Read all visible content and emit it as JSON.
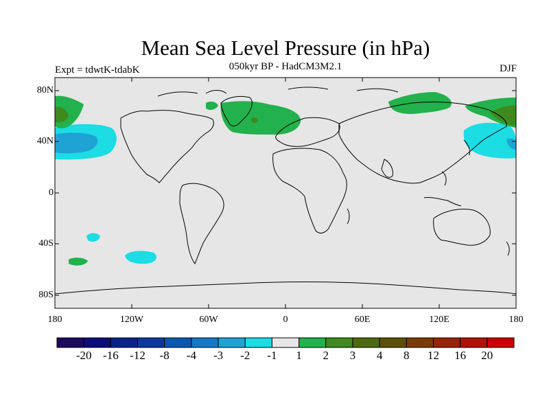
{
  "header": {
    "title": "Mean Sea Level Pressure (in hPa)",
    "subtitle": "050kyr BP - HadCM3M2.1",
    "experiment": "Expt = tdwtK-tdabK",
    "season": "DJF"
  },
  "axes": {
    "y_ticks": [
      "80N",
      "40N",
      "0",
      "40S",
      "80S"
    ],
    "x_ticks": [
      "180",
      "120W",
      "60W",
      "0",
      "60E",
      "120E",
      "180"
    ]
  },
  "colorbar": {
    "colors": [
      "#1c0a5c",
      "#0b0e78",
      "#0b2388",
      "#0b3a9c",
      "#0a58b0",
      "#1478c4",
      "#1ea3d4",
      "#1cdce4",
      "#e6e6e6",
      "#22b14c",
      "#3e8a1e",
      "#4d6a10",
      "#5d4f0a",
      "#7a3a08",
      "#962408",
      "#b01208",
      "#cc0008"
    ],
    "labels": [
      "-20",
      "-16",
      "-12",
      "-8",
      "-4",
      "-3",
      "-2",
      "-1",
      "1",
      "2",
      "3",
      "4",
      "8",
      "12",
      "16",
      "20"
    ]
  },
  "map": {
    "background": "#e6e6e6",
    "anomaly_regions": [
      {
        "name": "n-pacific-low-west",
        "level": "-2",
        "color": "#1cdce4"
      },
      {
        "name": "n-pacific-low-core",
        "level": "-3",
        "color": "#1ea3d4"
      },
      {
        "name": "nw-pacific-low",
        "level": "-2",
        "color": "#1cdce4"
      },
      {
        "name": "greenland-high",
        "level": "2",
        "color": "#22b14c"
      },
      {
        "name": "siberia-high",
        "level": "2",
        "color": "#22b14c"
      },
      {
        "name": "bering-high",
        "level": "3",
        "color": "#3e8a1e"
      },
      {
        "name": "south-pacific-low",
        "level": "-2",
        "color": "#1cdce4"
      }
    ]
  }
}
